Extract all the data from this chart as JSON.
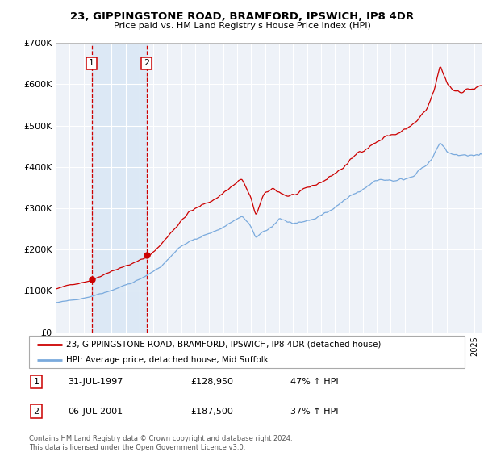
{
  "title": "23, GIPPINGSTONE ROAD, BRAMFORD, IPSWICH, IP8 4DR",
  "subtitle": "Price paid vs. HM Land Registry's House Price Index (HPI)",
  "red_label": "23, GIPPINGSTONE ROAD, BRAMFORD, IPSWICH, IP8 4DR (detached house)",
  "blue_label": "HPI: Average price, detached house, Mid Suffolk",
  "annotation1_date": "31-JUL-1997",
  "annotation1_price": "£128,950",
  "annotation1_hpi": "47% ↑ HPI",
  "annotation2_date": "06-JUL-2001",
  "annotation2_price": "£187,500",
  "annotation2_hpi": "37% ↑ HPI",
  "footnote": "Contains HM Land Registry data © Crown copyright and database right 2024.\nThis data is licensed under the Open Government Licence v3.0.",
  "purchase1_year": 1997.58,
  "purchase1_price": 128950,
  "purchase2_year": 2001.51,
  "purchase2_price": 187500,
  "xmin": 1995.0,
  "xmax": 2025.5,
  "ymin": 0,
  "ymax": 700000,
  "background_color": "#ffffff",
  "plot_bg_color": "#eef2f8",
  "grid_color": "#ffffff",
  "red_color": "#cc0000",
  "blue_color": "#7aaadd",
  "shade_color": "#dce8f5"
}
